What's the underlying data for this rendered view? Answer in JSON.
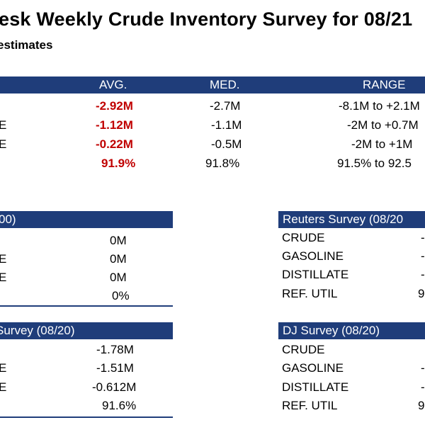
{
  "title": "esk Weekly Crude Inventory Survey for 08/21",
  "subtitle": "estimates",
  "main_table": {
    "headers": {
      "avg": "AVG.",
      "med": "MED.",
      "range": "RANGE"
    },
    "rows": [
      {
        "label": "",
        "avg": "-2.92M",
        "med": "-2.7M",
        "range": "-8.1M to +2.1M"
      },
      {
        "label": "E",
        "avg": "-1.12M",
        "med": "-1.1M",
        "range": "-2M to +0.7M"
      },
      {
        "label": "E",
        "avg": "-0.22M",
        "med": "-0.5M",
        "range": "-2M to +1M"
      },
      {
        "label": "",
        "avg": "91.9%",
        "med": "91.8%",
        "range": "91.5% to 92.5"
      }
    ]
  },
  "box_left_top": {
    "header": "00)",
    "rows": [
      {
        "label": "",
        "value": "0M"
      },
      {
        "label": "E",
        "value": "0M"
      },
      {
        "label": "E",
        "value": "0M"
      },
      {
        "label": "",
        "value": "0%"
      }
    ]
  },
  "box_right_top": {
    "header": "Reuters Survey  (08/20",
    "rows": [
      {
        "label": "CRUDE",
        "value": "-"
      },
      {
        "label": "GASOLINE",
        "value": "-"
      },
      {
        "label": "DISTILLATE",
        "value": "-"
      },
      {
        "label": "REF. UTIL",
        "value": "9"
      }
    ]
  },
  "box_left_bottom": {
    "header": " Survey  (08/20)",
    "rows": [
      {
        "label": "",
        "value": "-1.78M"
      },
      {
        "label": "E",
        "value": "-1.51M"
      },
      {
        "label": "E",
        "value": "-0.612M"
      },
      {
        "label": "",
        "value": "91.6%"
      }
    ]
  },
  "box_right_bottom": {
    "header": "DJ Survey   (08/20)",
    "rows": [
      {
        "label": "CRUDE",
        "value": ""
      },
      {
        "label": "GASOLINE",
        "value": "-"
      },
      {
        "label": "DISTILLATE",
        "value": "-"
      },
      {
        "label": "REF. UTIL",
        "value": "9"
      }
    ]
  },
  "colors": {
    "header_bg": "#1f3d7a",
    "highlight": "#c00000"
  }
}
